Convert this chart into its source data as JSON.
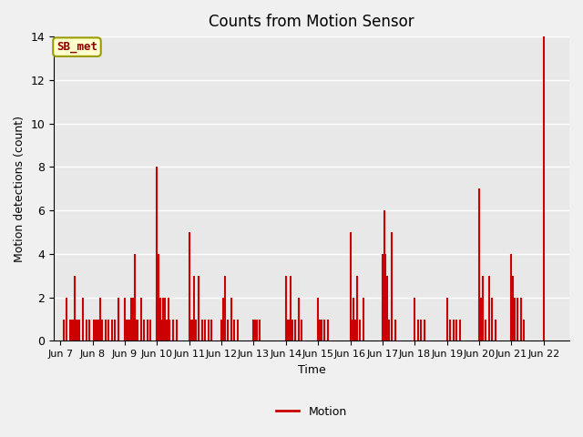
{
  "title": "Counts from Motion Sensor",
  "ylabel": "Motion detections (count)",
  "xlabel": "Time",
  "legend_label": "Motion",
  "line_color": "#cc0000",
  "ylim": [
    0,
    14
  ],
  "yticks": [
    0,
    2,
    4,
    6,
    8,
    10,
    12,
    14
  ],
  "background_color": "#e8e8e8",
  "annotation_text": "SB_met",
  "x_tick_labels": [
    "Jun 7",
    "Jun 8",
    "Jun 9",
    "Jun 10",
    "Jun 11",
    "Jun 12",
    "Jun 13",
    "Jun 14",
    "Jun 15",
    "Jun 16",
    "Jun 17",
    "Jun 18",
    "Jun 19",
    "Jun 20",
    "Jun 21",
    "Jun 22"
  ],
  "x_tick_positions": [
    6,
    7,
    8,
    9,
    10,
    11,
    12,
    13,
    14,
    15,
    16,
    17,
    18,
    19,
    20,
    21
  ],
  "xlim": [
    5.8,
    21.8
  ],
  "data_x": [
    6.1,
    6.2,
    6.3,
    6.35,
    6.4,
    6.45,
    6.5,
    6.55,
    6.6,
    6.7,
    6.8,
    6.9,
    7.05,
    7.1,
    7.15,
    7.2,
    7.25,
    7.3,
    7.4,
    7.5,
    7.6,
    7.7,
    7.8,
    8.0,
    8.05,
    8.1,
    8.15,
    8.2,
    8.25,
    8.3,
    8.35,
    8.4,
    8.5,
    8.6,
    8.7,
    8.8,
    9.0,
    9.05,
    9.1,
    9.15,
    9.2,
    9.25,
    9.3,
    9.35,
    9.4,
    9.5,
    9.6,
    10.0,
    10.05,
    10.1,
    10.15,
    10.2,
    10.3,
    10.4,
    10.5,
    10.6,
    10.7,
    11.0,
    11.05,
    11.1,
    11.2,
    11.3,
    11.4,
    11.5,
    12.0,
    12.05,
    12.1,
    12.2,
    13.0,
    13.05,
    13.1,
    13.15,
    13.2,
    13.3,
    13.4,
    13.5,
    14.0,
    14.05,
    14.1,
    14.2,
    14.3,
    15.0,
    15.05,
    15.1,
    15.15,
    15.2,
    15.3,
    15.4,
    16.0,
    16.05,
    16.1,
    16.15,
    16.2,
    16.3,
    16.4,
    17.0,
    17.1,
    17.2,
    17.3,
    18.0,
    18.1,
    18.2,
    18.3,
    18.4,
    19.0,
    19.05,
    19.1,
    19.2,
    19.3,
    19.4,
    19.5,
    20.0,
    20.05,
    20.1,
    20.2,
    20.3,
    20.4,
    21.0
  ],
  "data_y": [
    1,
    2,
    1,
    1,
    1,
    3,
    1,
    1,
    1,
    2,
    1,
    1,
    1,
    1,
    1,
    1,
    2,
    1,
    1,
    1,
    1,
    1,
    2,
    2,
    1,
    1,
    1,
    2,
    2,
    4,
    1,
    1,
    2,
    1,
    1,
    1,
    8,
    4,
    2,
    1,
    2,
    2,
    1,
    2,
    1,
    1,
    1,
    5,
    1,
    1,
    3,
    1,
    3,
    1,
    1,
    1,
    1,
    1,
    2,
    3,
    1,
    2,
    1,
    1,
    1,
    1,
    1,
    1,
    3,
    1,
    1,
    3,
    1,
    1,
    2,
    1,
    2,
    1,
    1,
    1,
    1,
    5,
    1,
    2,
    1,
    3,
    1,
    2,
    4,
    6,
    4,
    3,
    1,
    5,
    1,
    2,
    1,
    1,
    1,
    2,
    1,
    1,
    1,
    1,
    7,
    2,
    3,
    1,
    3,
    2,
    1,
    4,
    3,
    2,
    2,
    2,
    1,
    14
  ]
}
